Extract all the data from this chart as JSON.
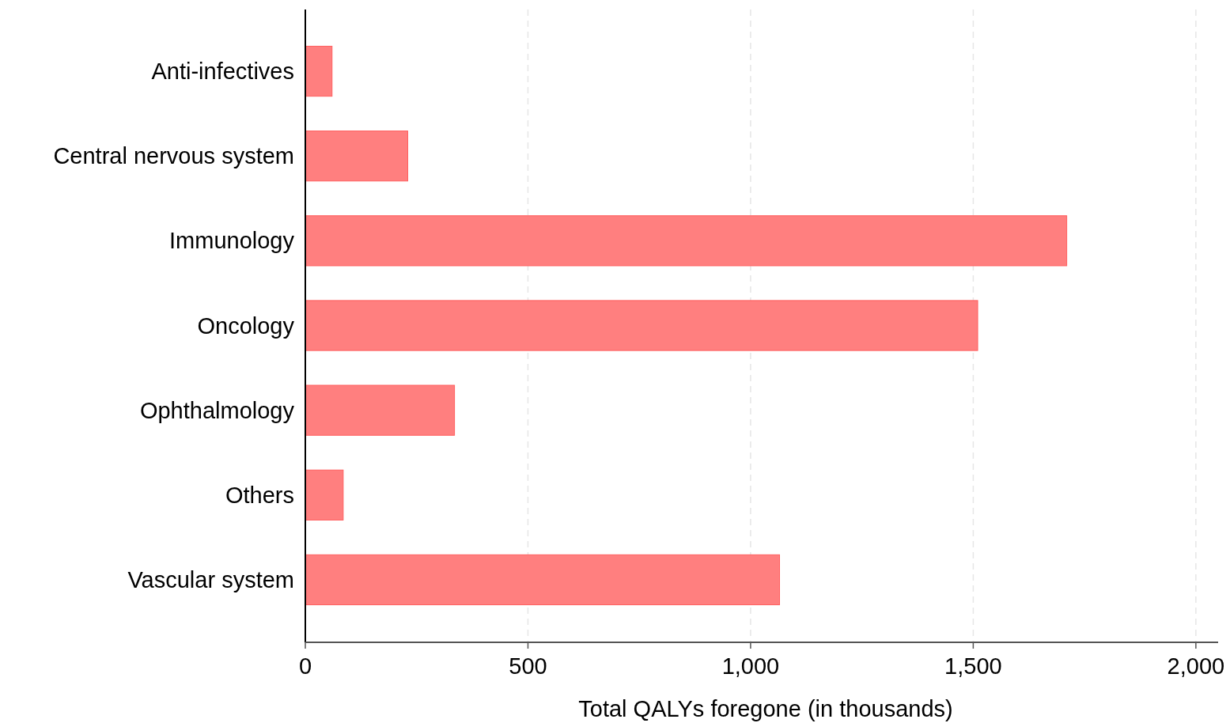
{
  "chart_data": {
    "type": "bar",
    "orientation": "horizontal",
    "categories": [
      "Anti-infectives",
      "Central nervous system",
      "Immunology",
      "Oncology",
      "Ophthalmology",
      "Others",
      "Vascular system"
    ],
    "values": [
      60,
      230,
      1710,
      1510,
      335,
      85,
      1065
    ],
    "color": "#ff7f7f",
    "xlabel": "Total QALYs foregone (in thousands)",
    "xlim": [
      0,
      2050
    ],
    "xticks": [
      0,
      500,
      {
        "value": 1000,
        "label": "1,000"
      },
      {
        "value": 1500,
        "label": "1,500"
      },
      {
        "value": 2000,
        "label": "2,000"
      }
    ],
    "grid": "x"
  }
}
